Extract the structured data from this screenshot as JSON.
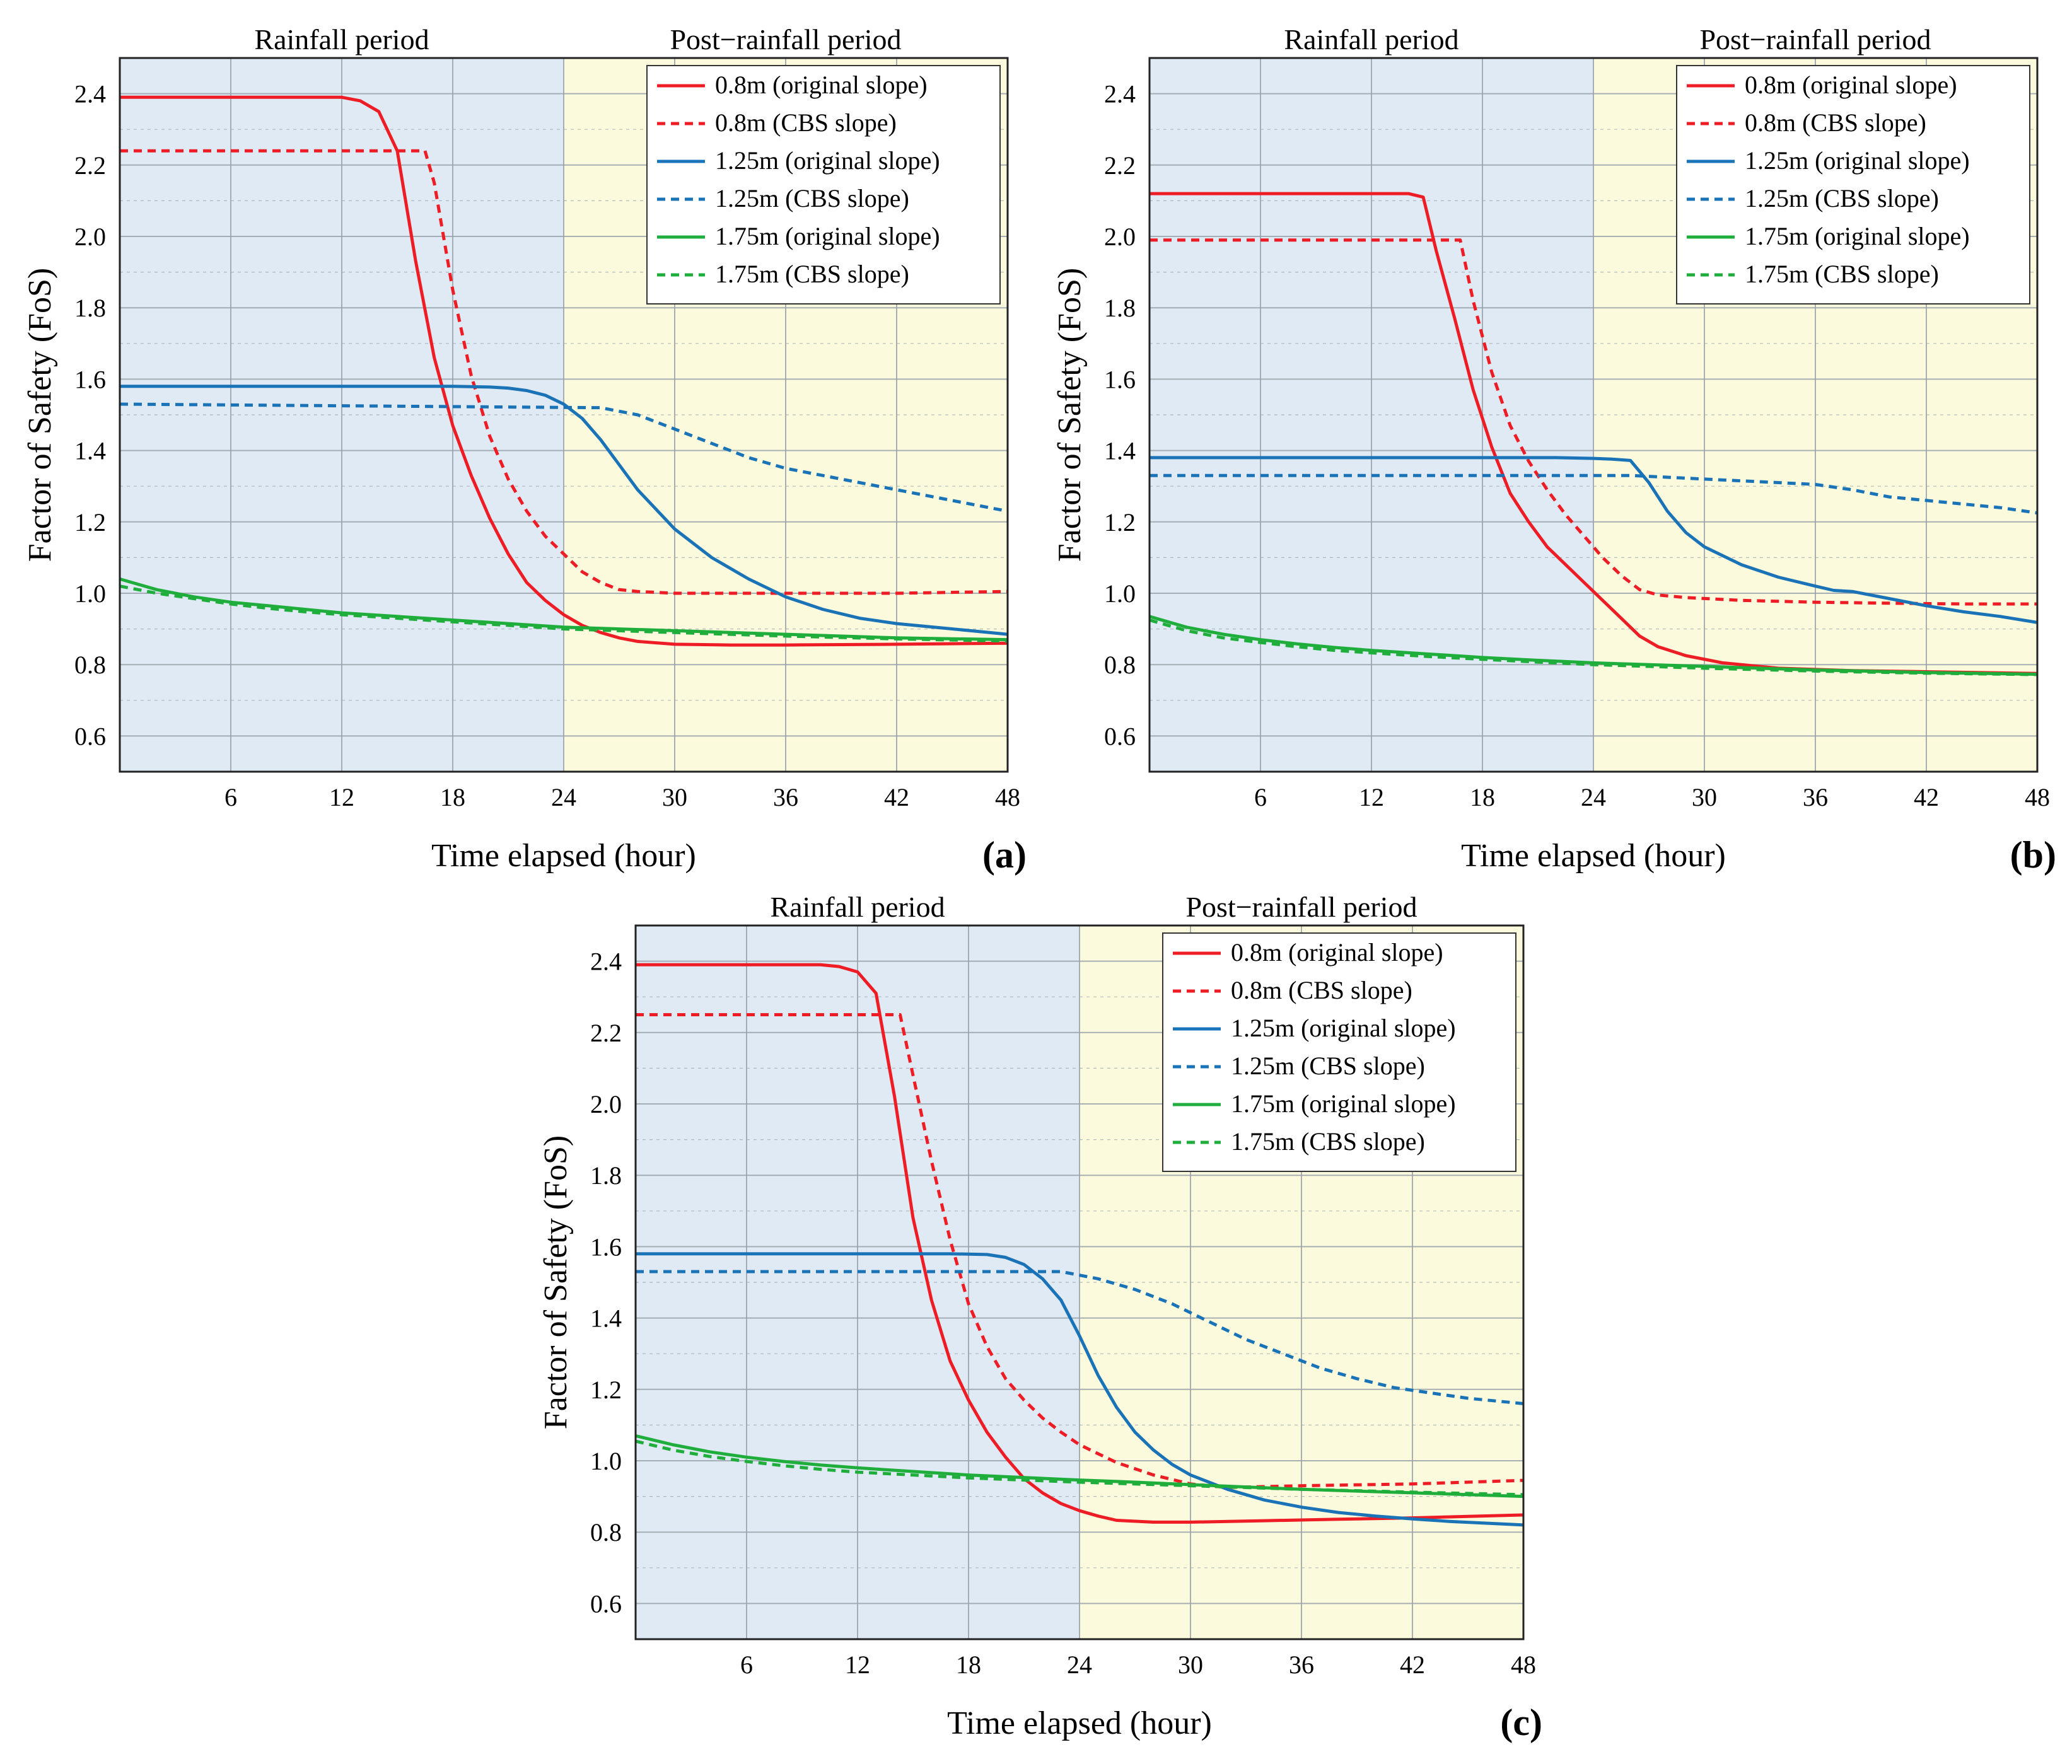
{
  "figure": {
    "period_labels": {
      "rainfall": "Rainfall period",
      "post": "Post−rainfall period"
    },
    "colors": {
      "rain_bg": "#dfeaf4",
      "post_bg": "#fbfadc",
      "grid": "#9aa3ab",
      "series_red": "#ee1c25",
      "series_blue": "#1a73b7",
      "series_green": "#1fae3c"
    }
  },
  "chart_data": [
    {
      "panel_label": "(a)",
      "type": "line",
      "title": "",
      "xlabel": "Time elapsed (hour)",
      "ylabel": "Factor of Safety (FoS)",
      "xlim": [
        0,
        48
      ],
      "ylim": [
        0.5,
        2.5
      ],
      "xticks": [
        "6",
        "12",
        "18",
        "24",
        "30",
        "36",
        "42",
        "48"
      ],
      "yticks": [
        "0.6",
        "0.8",
        "1.0",
        "1.2",
        "1.4",
        "1.6",
        "1.8",
        "2.0",
        "2.2",
        "2.4"
      ],
      "grid": true,
      "legend_position": "top-right",
      "shaded_regions": [
        {
          "label": "Rainfall period",
          "x": [
            0,
            24
          ]
        },
        {
          "label": "Post−rainfall period",
          "x": [
            24,
            48
          ]
        }
      ],
      "series": [
        {
          "name": "0.8m (original slope)",
          "color": "#ee1c25",
          "dash": "solid",
          "x": [
            0,
            12,
            13,
            14,
            15,
            16,
            17,
            18,
            19,
            20,
            21,
            22,
            23,
            24,
            25,
            26,
            27,
            28,
            30,
            33,
            36,
            42,
            48
          ],
          "y": [
            2.39,
            2.39,
            2.38,
            2.35,
            2.24,
            1.93,
            1.66,
            1.47,
            1.33,
            1.21,
            1.11,
            1.03,
            0.98,
            0.94,
            0.91,
            0.89,
            0.875,
            0.865,
            0.857,
            0.855,
            0.855,
            0.857,
            0.86
          ]
        },
        {
          "name": "0.8m (CBS slope)",
          "color": "#ee1c25",
          "dash": "dashed",
          "x": [
            0,
            16.5,
            17,
            18,
            19,
            20,
            21,
            22,
            23,
            24,
            25,
            26,
            27,
            28,
            30,
            36,
            42,
            48
          ],
          "y": [
            2.24,
            2.24,
            2.15,
            1.85,
            1.61,
            1.44,
            1.32,
            1.23,
            1.16,
            1.11,
            1.06,
            1.03,
            1.01,
            1.005,
            1.0,
            1.0,
            1.0,
            1.005
          ]
        },
        {
          "name": "1.25m (original slope)",
          "color": "#1a73b7",
          "dash": "solid",
          "x": [
            0,
            18,
            20,
            21,
            22,
            23,
            24,
            25,
            26,
            27,
            28,
            30,
            32,
            34,
            36,
            38,
            40,
            42,
            44,
            46,
            48
          ],
          "y": [
            1.58,
            1.58,
            1.578,
            1.575,
            1.568,
            1.555,
            1.53,
            1.49,
            1.43,
            1.36,
            1.29,
            1.18,
            1.1,
            1.04,
            0.99,
            0.955,
            0.93,
            0.915,
            0.905,
            0.895,
            0.885
          ]
        },
        {
          "name": "1.25m (CBS slope)",
          "color": "#1a73b7",
          "dash": "dashed",
          "x": [
            0,
            26,
            28,
            30,
            32,
            34,
            36,
            38,
            40,
            42,
            44,
            46,
            48
          ],
          "y": [
            1.53,
            1.52,
            1.5,
            1.46,
            1.42,
            1.38,
            1.35,
            1.33,
            1.31,
            1.29,
            1.27,
            1.25,
            1.23
          ]
        },
        {
          "name": "1.75m (original slope)",
          "color": "#1fae3c",
          "dash": "solid",
          "x": [
            0,
            2,
            4,
            6,
            8,
            10,
            12,
            15,
            18,
            21,
            24,
            27,
            30,
            36,
            42,
            48
          ],
          "y": [
            1.04,
            1.01,
            0.99,
            0.975,
            0.965,
            0.955,
            0.945,
            0.935,
            0.925,
            0.915,
            0.905,
            0.9,
            0.895,
            0.885,
            0.875,
            0.87
          ]
        },
        {
          "name": "1.75m (CBS slope)",
          "color": "#1fae3c",
          "dash": "dashed",
          "x": [
            0,
            2,
            4,
            6,
            8,
            10,
            12,
            15,
            18,
            21,
            24,
            27,
            30,
            36,
            42,
            48
          ],
          "y": [
            1.02,
            1.0,
            0.985,
            0.97,
            0.958,
            0.948,
            0.94,
            0.93,
            0.92,
            0.91,
            0.9,
            0.895,
            0.89,
            0.88,
            0.872,
            0.866
          ]
        }
      ]
    },
    {
      "panel_label": "(b)",
      "type": "line",
      "title": "",
      "xlabel": "Time elapsed (hour)",
      "ylabel": "Factor of Safety (FoS)",
      "xlim": [
        0,
        48
      ],
      "ylim": [
        0.5,
        2.5
      ],
      "xticks": [
        "6",
        "12",
        "18",
        "24",
        "30",
        "36",
        "42",
        "48"
      ],
      "yticks": [
        "0.6",
        "0.8",
        "1.0",
        "1.2",
        "1.4",
        "1.6",
        "1.8",
        "2.0",
        "2.2",
        "2.4"
      ],
      "grid": true,
      "legend_position": "top-right",
      "shaded_regions": [
        {
          "label": "Rainfall period",
          "x": [
            0,
            24
          ]
        },
        {
          "label": "Post−rainfall period",
          "x": [
            24,
            48
          ]
        }
      ],
      "series": [
        {
          "name": "0.8m (original slope)",
          "color": "#ee1c25",
          "dash": "solid",
          "x": [
            0,
            14,
            14.8,
            15.5,
            16.5,
            17.5,
            18.5,
            19.5,
            20.5,
            21.5,
            22.5,
            23.5,
            24.5,
            25.5,
            26.5,
            27.5,
            29,
            31,
            34,
            38,
            42,
            48
          ],
          "y": [
            2.12,
            2.12,
            2.11,
            1.96,
            1.77,
            1.57,
            1.41,
            1.28,
            1.2,
            1.13,
            1.08,
            1.03,
            0.98,
            0.93,
            0.88,
            0.85,
            0.825,
            0.805,
            0.79,
            0.783,
            0.78,
            0.775
          ]
        },
        {
          "name": "0.8m (CBS slope)",
          "color": "#ee1c25",
          "dash": "dashed",
          "x": [
            0,
            16.8,
            17.5,
            18.5,
            19.5,
            20.5,
            21.5,
            22.5,
            23.5,
            24.5,
            25.5,
            26.5,
            27.5,
            29,
            32,
            36,
            40,
            44,
            48
          ],
          "y": [
            1.99,
            1.99,
            1.82,
            1.62,
            1.47,
            1.37,
            1.29,
            1.22,
            1.16,
            1.1,
            1.05,
            1.01,
            0.995,
            0.988,
            0.98,
            0.975,
            0.972,
            0.97,
            0.97
          ]
        },
        {
          "name": "1.25m (original slope)",
          "color": "#1a73b7",
          "dash": "solid",
          "x": [
            0,
            22,
            24,
            25,
            26,
            27,
            28,
            29,
            30,
            32,
            34,
            36,
            37,
            38,
            40,
            42,
            44,
            46,
            48
          ],
          "y": [
            1.38,
            1.38,
            1.378,
            1.376,
            1.372,
            1.31,
            1.23,
            1.17,
            1.13,
            1.08,
            1.045,
            1.02,
            1.008,
            1.005,
            0.985,
            0.965,
            0.948,
            0.935,
            0.918
          ]
        },
        {
          "name": "1.25m (CBS slope)",
          "color": "#1a73b7",
          "dash": "dashed",
          "x": [
            0,
            26,
            28,
            30,
            32,
            34,
            36,
            38,
            40,
            42,
            44,
            46,
            48
          ],
          "y": [
            1.33,
            1.33,
            1.325,
            1.32,
            1.315,
            1.31,
            1.305,
            1.29,
            1.27,
            1.26,
            1.25,
            1.24,
            1.225
          ]
        },
        {
          "name": "1.75m (original slope)",
          "color": "#1fae3c",
          "dash": "solid",
          "x": [
            0,
            2,
            4,
            6,
            8,
            10,
            12,
            15,
            18,
            21,
            24,
            27,
            30,
            36,
            42,
            48
          ],
          "y": [
            0.935,
            0.905,
            0.885,
            0.87,
            0.858,
            0.848,
            0.84,
            0.83,
            0.82,
            0.812,
            0.805,
            0.8,
            0.795,
            0.785,
            0.778,
            0.773
          ]
        },
        {
          "name": "1.75m (CBS slope)",
          "color": "#1fae3c",
          "dash": "dashed",
          "x": [
            0,
            2,
            4,
            6,
            8,
            10,
            12,
            15,
            18,
            21,
            24,
            27,
            30,
            36,
            42,
            48
          ],
          "y": [
            0.925,
            0.895,
            0.875,
            0.862,
            0.85,
            0.84,
            0.833,
            0.823,
            0.815,
            0.807,
            0.8,
            0.795,
            0.79,
            0.782,
            0.776,
            0.772
          ]
        }
      ]
    },
    {
      "panel_label": "(c)",
      "type": "line",
      "title": "",
      "xlabel": "Time elapsed (hour)",
      "ylabel": "Factor of Safety (FoS)",
      "xlim": [
        0,
        48
      ],
      "ylim": [
        0.5,
        2.5
      ],
      "xticks": [
        "6",
        "12",
        "18",
        "24",
        "30",
        "36",
        "42",
        "48"
      ],
      "yticks": [
        "0.6",
        "0.8",
        "1.0",
        "1.2",
        "1.4",
        "1.6",
        "1.8",
        "2.0",
        "2.2",
        "2.4"
      ],
      "grid": true,
      "legend_position": "top-right",
      "shaded_regions": [
        {
          "label": "Rainfall period",
          "x": [
            0,
            24
          ]
        },
        {
          "label": "Post−rainfall period",
          "x": [
            24,
            48
          ]
        }
      ],
      "series": [
        {
          "name": "0.8m (original slope)",
          "color": "#ee1c25",
          "dash": "solid",
          "x": [
            0,
            10,
            11,
            12,
            13,
            14,
            15,
            16,
            17,
            18,
            19,
            20,
            21,
            22,
            23,
            24,
            25,
            26,
            28,
            30,
            34,
            38,
            42,
            48
          ],
          "y": [
            2.39,
            2.39,
            2.385,
            2.37,
            2.31,
            2.02,
            1.68,
            1.45,
            1.28,
            1.17,
            1.08,
            1.01,
            0.95,
            0.91,
            0.88,
            0.86,
            0.845,
            0.833,
            0.828,
            0.828,
            0.832,
            0.836,
            0.84,
            0.848
          ]
        },
        {
          "name": "0.8m (CBS slope)",
          "color": "#ee1c25",
          "dash": "dashed",
          "x": [
            0,
            14.3,
            15,
            16,
            17,
            18,
            19,
            20,
            21,
            22,
            23,
            24,
            25,
            26,
            28,
            30,
            32,
            36,
            42,
            48
          ],
          "y": [
            2.25,
            2.25,
            2.08,
            1.84,
            1.62,
            1.44,
            1.32,
            1.23,
            1.17,
            1.12,
            1.08,
            1.045,
            1.02,
            0.995,
            0.96,
            0.935,
            0.925,
            0.93,
            0.935,
            0.945
          ]
        },
        {
          "name": "1.25m (original slope)",
          "color": "#1a73b7",
          "dash": "solid",
          "x": [
            0,
            17,
            19,
            20,
            21,
            22,
            23,
            24,
            25,
            26,
            27,
            28,
            29,
            30,
            32,
            34,
            36,
            38,
            40,
            42,
            44,
            48
          ],
          "y": [
            1.58,
            1.58,
            1.578,
            1.57,
            1.55,
            1.51,
            1.45,
            1.35,
            1.24,
            1.15,
            1.08,
            1.03,
            0.99,
            0.96,
            0.92,
            0.89,
            0.87,
            0.855,
            0.845,
            0.837,
            0.83,
            0.82
          ]
        },
        {
          "name": "1.25m (CBS slope)",
          "color": "#1a73b7",
          "dash": "dashed",
          "x": [
            0,
            23,
            25,
            27,
            29,
            31,
            33,
            35,
            37,
            39,
            41,
            43,
            45,
            48
          ],
          "y": [
            1.53,
            1.53,
            1.51,
            1.48,
            1.44,
            1.39,
            1.34,
            1.3,
            1.26,
            1.23,
            1.205,
            1.19,
            1.175,
            1.16
          ]
        },
        {
          "name": "1.75m (original slope)",
          "color": "#1fae3c",
          "dash": "solid",
          "x": [
            0,
            2,
            4,
            6,
            8,
            10,
            12,
            15,
            18,
            21,
            24,
            27,
            30,
            36,
            42,
            48
          ],
          "y": [
            1.07,
            1.045,
            1.025,
            1.01,
            0.998,
            0.988,
            0.98,
            0.97,
            0.96,
            0.953,
            0.946,
            0.94,
            0.933,
            0.92,
            0.91,
            0.9
          ]
        },
        {
          "name": "1.75m (CBS slope)",
          "color": "#1fae3c",
          "dash": "dashed",
          "x": [
            0,
            2,
            4,
            6,
            8,
            10,
            12,
            15,
            18,
            21,
            24,
            27,
            30,
            36,
            42,
            48
          ],
          "y": [
            1.055,
            1.03,
            1.012,
            0.998,
            0.986,
            0.976,
            0.968,
            0.96,
            0.952,
            0.946,
            0.94,
            0.935,
            0.93,
            0.92,
            0.912,
            0.905
          ]
        }
      ]
    }
  ]
}
